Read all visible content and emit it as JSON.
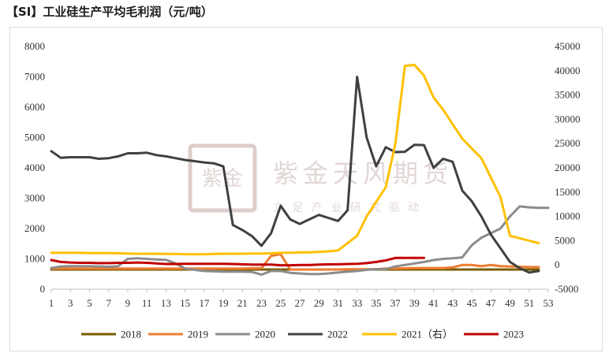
{
  "title": "【SI】工业硅生产平均毛利润（元/吨）",
  "watermark": {
    "name": "紫金天风期货",
    "slogan": "立 足 产 业   研 究 驱 动",
    "seal": "紫金天风"
  },
  "chart_data": {
    "type": "line",
    "title": "【SI】工业硅生产平均毛利润（元/吨）",
    "x": [
      1,
      2,
      3,
      4,
      5,
      6,
      7,
      8,
      9,
      10,
      11,
      12,
      13,
      14,
      15,
      16,
      17,
      18,
      19,
      20,
      21,
      22,
      23,
      24,
      25,
      26,
      27,
      28,
      29,
      30,
      31,
      32,
      33,
      34,
      35,
      36,
      37,
      38,
      39,
      40,
      41,
      42,
      43,
      44,
      45,
      46,
      47,
      48,
      49,
      50,
      51,
      52,
      53
    ],
    "xticks": [
      1,
      3,
      5,
      7,
      9,
      11,
      13,
      15,
      17,
      19,
      21,
      23,
      25,
      27,
      29,
      31,
      33,
      35,
      37,
      39,
      41,
      43,
      45,
      47,
      49,
      51,
      53
    ],
    "xlim": [
      1,
      53
    ],
    "ylim_left": [
      0,
      8000
    ],
    "yticks_left": [
      0,
      1000,
      2000,
      3000,
      4000,
      5000,
      6000,
      7000,
      8000
    ],
    "ylim_right": [
      -5000,
      45000
    ],
    "yticks_right": [
      -5000,
      0,
      5000,
      10000,
      15000,
      20000,
      25000,
      30000,
      35000,
      40000,
      45000
    ],
    "grid": false,
    "legend_position": "bottom",
    "series": [
      {
        "name": "2018",
        "color": "#7a5c00",
        "axis": "left",
        "values": [
          650,
          650,
          650,
          650,
          650,
          650,
          650,
          650,
          650,
          650,
          650,
          650,
          650,
          650,
          650,
          650,
          650,
          650,
          650,
          650,
          650,
          650,
          650,
          650,
          650,
          650,
          650,
          650,
          650,
          650,
          650,
          650,
          650,
          650,
          650,
          650,
          650,
          650,
          650,
          650,
          650,
          650,
          650,
          650,
          650,
          650,
          650,
          650,
          650,
          650,
          650,
          650,
          null
        ]
      },
      {
        "name": "2019",
        "color": "#ed7d31",
        "axis": "left",
        "values": [
          680,
          680,
          680,
          680,
          680,
          680,
          680,
          680,
          680,
          680,
          680,
          680,
          680,
          680,
          680,
          680,
          680,
          680,
          680,
          680,
          680,
          690,
          700,
          1100,
          1150,
          650,
          650,
          650,
          650,
          650,
          650,
          660,
          660,
          660,
          660,
          680,
          680,
          690,
          700,
          700,
          700,
          700,
          720,
          800,
          800,
          760,
          800,
          760,
          750,
          740,
          730,
          730,
          null
        ]
      },
      {
        "name": "2020",
        "color": "#8c8c8c",
        "axis": "left",
        "values": [
          700,
          750,
          760,
          760,
          760,
          750,
          740,
          760,
          1000,
          1020,
          1000,
          980,
          970,
          850,
          680,
          640,
          600,
          590,
          580,
          580,
          580,
          570,
          480,
          600,
          600,
          540,
          520,
          500,
          500,
          520,
          550,
          580,
          600,
          640,
          660,
          660,
          750,
          800,
          850,
          900,
          960,
          1000,
          1020,
          1050,
          1450,
          1700,
          1850,
          2000,
          2400,
          2730,
          2700,
          2680,
          2680
        ]
      },
      {
        "name": "2022",
        "color": "#404040",
        "axis": "left",
        "values": [
          4550,
          4330,
          4350,
          4350,
          4350,
          4300,
          4320,
          4380,
          4480,
          4480,
          4500,
          4420,
          4380,
          4320,
          4260,
          4220,
          4180,
          4150,
          4050,
          2120,
          1950,
          1750,
          1430,
          1850,
          2750,
          2300,
          2150,
          2300,
          2450,
          2350,
          2250,
          2600,
          7000,
          5000,
          4050,
          4680,
          4520,
          4530,
          4760,
          4750,
          4000,
          4300,
          4200,
          3250,
          2900,
          2400,
          1800,
          1350,
          900,
          700,
          550,
          600,
          null
        ]
      },
      {
        "name": "2021（右）",
        "color": "#ffc000",
        "axis": "right",
        "values": [
          2500,
          2500,
          2500,
          2500,
          2450,
          2450,
          2450,
          2400,
          2350,
          2300,
          2300,
          2300,
          2250,
          2250,
          2200,
          2200,
          2200,
          2250,
          2300,
          2300,
          2300,
          2350,
          2350,
          2400,
          2500,
          2500,
          2600,
          2600,
          2700,
          2800,
          3000,
          4500,
          6000,
          10000,
          13000,
          16000,
          25000,
          41000,
          41200,
          39000,
          34500,
          32000,
          29000,
          26000,
          24000,
          22000,
          18000,
          14000,
          6000,
          5500,
          5000,
          4500,
          null
        ]
      },
      {
        "name": "2023",
        "color": "#c00000",
        "axis": "left",
        "values": [
          960,
          900,
          880,
          870,
          870,
          860,
          860,
          870,
          870,
          880,
          870,
          850,
          830,
          830,
          840,
          840,
          840,
          840,
          840,
          830,
          820,
          810,
          810,
          810,
          790,
          790,
          800,
          800,
          810,
          820,
          820,
          830,
          840,
          860,
          900,
          950,
          1030,
          1030,
          1030,
          1030,
          null,
          null,
          null,
          null,
          null,
          null,
          null,
          null,
          null,
          null,
          null,
          null,
          null
        ]
      }
    ]
  }
}
